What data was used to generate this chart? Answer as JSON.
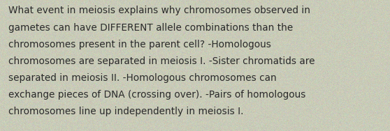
{
  "lines": [
    "What event in meiosis explains why chromosomes observed in",
    "gametes can have DIFFERENT allele combinations than the",
    "chromosomes present in the parent cell? -Homologous",
    "chromosomes are separated in meiosis I. -Sister chromatids are",
    "separated in meiosis II. -Homologous chromosomes can",
    "exchange pieces of DNA (crossing over). -Pairs of homologous",
    "chromosomes line up independently in meiosis I."
  ],
  "background_base": [
    0.788,
    0.796,
    0.722
  ],
  "background_color": "#c9cbb8",
  "text_color": "#2a2a2a",
  "font_size": 9.8,
  "fig_width": 5.58,
  "fig_height": 1.88,
  "dpi": 100
}
